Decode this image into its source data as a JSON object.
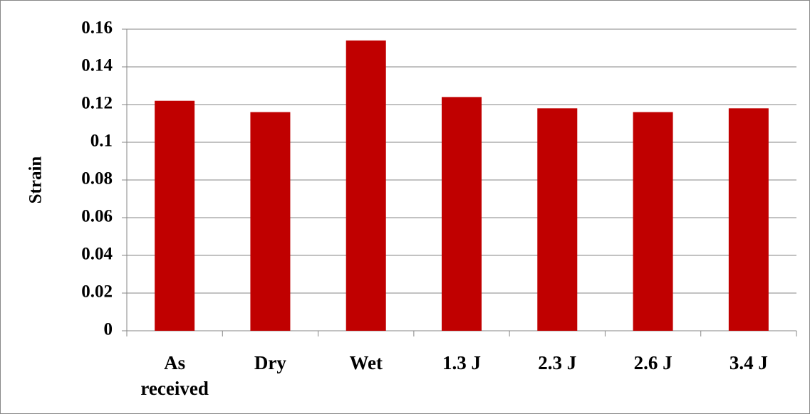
{
  "chart_data": {
    "type": "bar",
    "y_label": "Strain",
    "categories": [
      "As received",
      "Dry",
      "Wet",
      "1.3 J",
      "2.3 J",
      "2.6 J",
      "3.4 J"
    ],
    "values": [
      0.122,
      0.116,
      0.154,
      0.124,
      0.118,
      0.116,
      0.118
    ],
    "color": "#c00000",
    "ylim": [
      0,
      0.16
    ],
    "yticks": [
      0,
      0.02,
      0.04,
      0.06,
      0.08,
      0.1,
      0.12,
      0.14,
      0.16
    ],
    "grid": true
  }
}
